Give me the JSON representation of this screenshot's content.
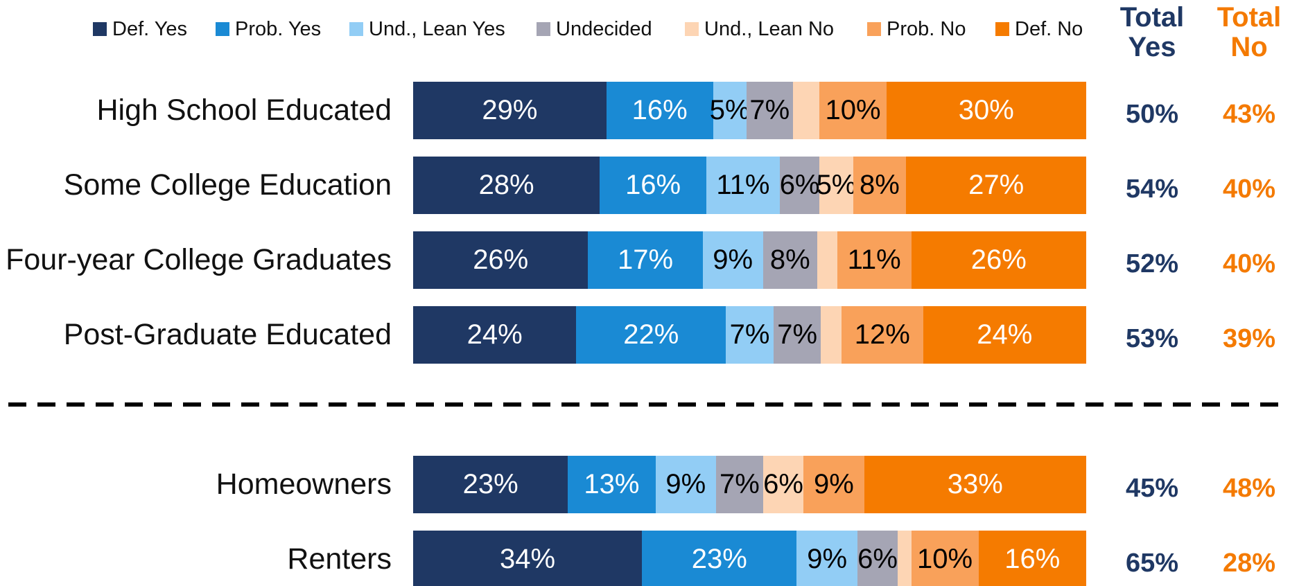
{
  "chart_data": {
    "type": "stacked_barh",
    "categories": [
      "High School Educated",
      "Some College Education",
      "Four-year College Graduates",
      "Post-Graduate Educated",
      "Homeowners",
      "Renters"
    ],
    "series": [
      {
        "name": "Def. Yes",
        "color": "#1f3864",
        "label_color": "#ffffff",
        "values": [
          29,
          28,
          26,
          24,
          23,
          34
        ],
        "value_labels": [
          "29%",
          "28%",
          "26%",
          "24%",
          "23%",
          "34%"
        ]
      },
      {
        "name": "Prob. Yes",
        "color": "#1a8ad4",
        "label_color": "#ffffff",
        "values": [
          16,
          16,
          17,
          22,
          13,
          23
        ],
        "value_labels": [
          "16%",
          "16%",
          "17%",
          "22%",
          "13%",
          "23%"
        ]
      },
      {
        "name": "Und., Lean Yes",
        "color": "#92cdf5",
        "label_color": "#000000",
        "values": [
          5,
          11,
          9,
          7,
          9,
          9
        ],
        "value_labels": [
          "5%",
          "11%",
          "9%",
          "7%",
          "9%",
          "9%"
        ]
      },
      {
        "name": "Undecided",
        "color": "#a5a5b4",
        "label_color": "#000000",
        "values": [
          7,
          6,
          8,
          7,
          7,
          6
        ],
        "value_labels": [
          "7%",
          "6%",
          "8%",
          "7%",
          "7%",
          "6%"
        ]
      },
      {
        "name": "Und., Lean No",
        "color": "#fdd5b4",
        "label_color": "#000000",
        "values": [
          4,
          5,
          3,
          3,
          6,
          2
        ],
        "value_labels": [
          null,
          "5%",
          null,
          null,
          "6%",
          null
        ]
      },
      {
        "name": "Prob. No",
        "color": "#f9a15a",
        "label_color": "#000000",
        "values": [
          10,
          8,
          11,
          12,
          9,
          10
        ],
        "value_labels": [
          "10%",
          "8%",
          "11%",
          "12%",
          "9%",
          "10%"
        ]
      },
      {
        "name": "Def. No",
        "color": "#f57b00",
        "label_color": "#ffffff",
        "values": [
          30,
          27,
          26,
          24,
          33,
          16
        ],
        "value_labels": [
          "30%",
          "27%",
          "26%",
          "24%",
          "33%",
          "16%"
        ]
      }
    ],
    "totals": [
      {
        "name": "Total Yes",
        "color": "#1f3864",
        "values": [
          50,
          54,
          52,
          53,
          45,
          65
        ],
        "value_labels": [
          "50%",
          "54%",
          "52%",
          "53%",
          "45%",
          "65%"
        ]
      },
      {
        "name": "Total No",
        "color": "#f47a00",
        "values": [
          43,
          40,
          40,
          39,
          48,
          28
        ],
        "value_labels": [
          "43%",
          "40%",
          "40%",
          "39%",
          "48%",
          "28%"
        ]
      }
    ]
  }
}
